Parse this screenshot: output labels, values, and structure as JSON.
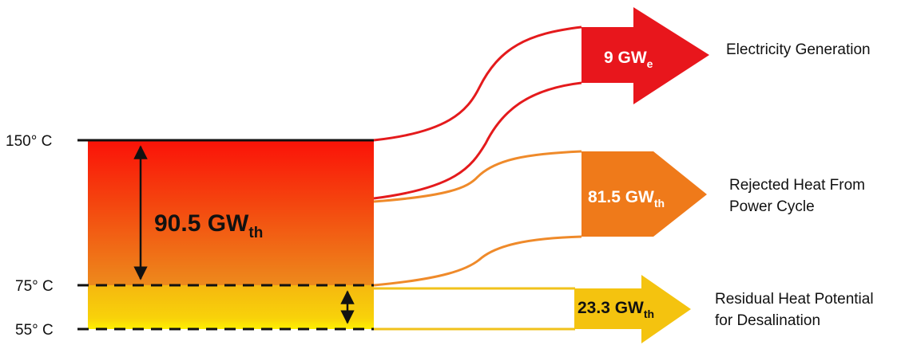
{
  "temperatures": {
    "t150": "150° C",
    "t75": "75° C",
    "t55": "55° C"
  },
  "total": {
    "value": "90.5 GW",
    "sub": "th"
  },
  "outputs": [
    {
      "value": "9 GW",
      "sub": "e",
      "label_lines": [
        "Electricity Generation"
      ],
      "color": "#e8161c"
    },
    {
      "value": "81.5 GW",
      "sub": "th",
      "label_lines": [
        "Rejected Heat From",
        "Power Cycle"
      ],
      "color": "#ef7a1a"
    },
    {
      "value": "23.3 GW",
      "sub": "th",
      "label_lines": [
        "Residual Heat Potential",
        "for Desalination"
      ],
      "color": "#f4c30f"
    }
  ],
  "colors": {
    "top_red": "#fb1208",
    "mid_orange": "#f07a14",
    "yellow": "#f7c80c",
    "bright_yellow": "#ffe600",
    "red_line": "#e41a1c",
    "orange_line": "#ef8a2a",
    "yellow_line": "#f1c21b"
  }
}
